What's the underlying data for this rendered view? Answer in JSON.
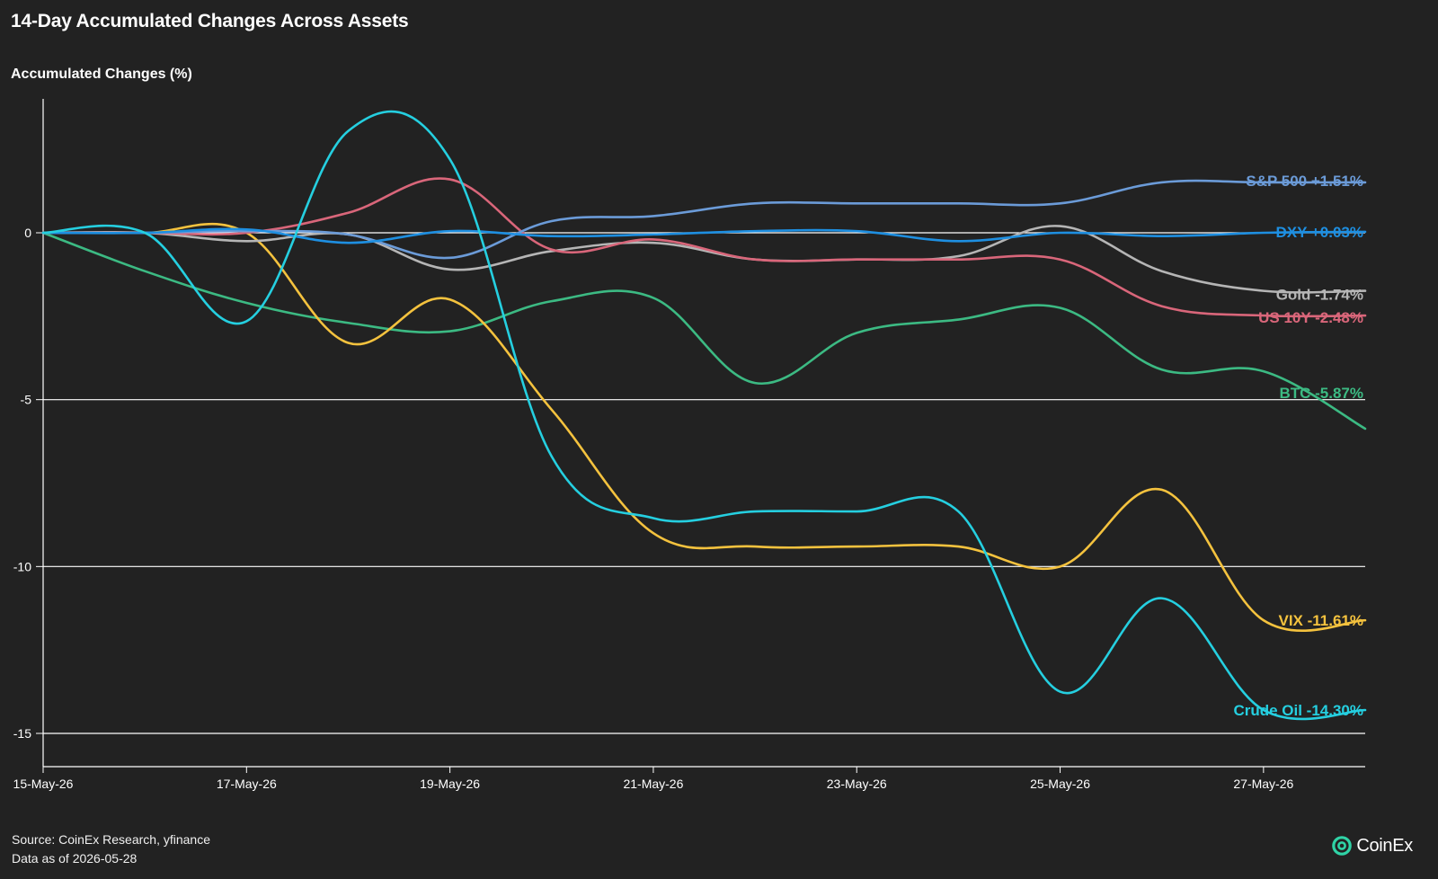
{
  "title": "14-Day Accumulated Changes Across Assets",
  "footer": {
    "source": "Source: CoinEx Research, yfinance",
    "data_as_of": "Data as of 2026-05-28"
  },
  "brand": {
    "name": "CoinEx",
    "logo_icon": "coinex-logo-icon",
    "color": "#2fd3a6"
  },
  "chart_data": {
    "type": "line",
    "title": "14-Day Accumulated Changes Across Assets",
    "xlabel": "",
    "ylabel": "Accumulated Changes (%)",
    "x": [
      "15-May-26",
      "16-May-26",
      "17-May-26",
      "18-May-26",
      "19-May-26",
      "20-May-26",
      "21-May-26",
      "22-May-26",
      "23-May-26",
      "24-May-26",
      "25-May-26",
      "26-May-26",
      "27-May-26",
      "28-May-26"
    ],
    "xticks": [
      "15-May-26",
      "17-May-26",
      "19-May-26",
      "21-May-26",
      "23-May-26",
      "25-May-26",
      "27-May-26"
    ],
    "yticks": [
      0,
      -5,
      -10,
      -15
    ],
    "ytick_labels": [
      "0",
      "-5",
      "-10",
      "-15"
    ],
    "ylim": [
      -16,
      4
    ],
    "grid": "horizontal",
    "series": [
      {
        "name": "S&P 500",
        "label": "S&P 500 +1.51%",
        "color": "#6b9bd8",
        "values": [
          0,
          0,
          0.05,
          -0.05,
          -0.75,
          0.35,
          0.5,
          0.88,
          0.88,
          0.88,
          0.88,
          1.51,
          1.51,
          1.51
        ]
      },
      {
        "name": "DXY",
        "label": "DXY +0.03%",
        "color": "#1e8fe1",
        "values": [
          0,
          0,
          0.1,
          -0.3,
          0.05,
          -0.1,
          -0.05,
          0.05,
          0.05,
          -0.25,
          0.0,
          -0.1,
          0.0,
          0.03
        ]
      },
      {
        "name": "Gold",
        "label": "Gold -1.74%",
        "color": "#b5b5b5",
        "values": [
          0,
          0,
          -0.25,
          -0.05,
          -1.1,
          -0.55,
          -0.3,
          -0.8,
          -0.8,
          -0.7,
          0.2,
          -1.15,
          -1.74,
          -1.74
        ]
      },
      {
        "name": "US 10Y",
        "label": "US 10Y -2.48%",
        "color": "#d9667a",
        "values": [
          0,
          0,
          0,
          0.6,
          1.6,
          -0.5,
          -0.2,
          -0.8,
          -0.8,
          -0.8,
          -0.8,
          -2.2,
          -2.48,
          -2.48
        ]
      },
      {
        "name": "BTC",
        "label": "BTC -5.87%",
        "color": "#3cba83",
        "values": [
          0,
          -1.15,
          -2.1,
          -2.7,
          -2.95,
          -2.05,
          -1.95,
          -4.5,
          -3.0,
          -2.6,
          -2.25,
          -4.1,
          -4.15,
          -5.87
        ]
      },
      {
        "name": "VIX",
        "label": "VIX -11.61%",
        "color": "#f4c23e",
        "values": [
          0,
          0,
          0,
          -3.3,
          -2.0,
          -5.3,
          -9.0,
          -9.4,
          -9.4,
          -9.4,
          -10.0,
          -7.7,
          -11.61,
          -11.61
        ]
      },
      {
        "name": "Crude Oil",
        "label": "Crude Oil -14.30%",
        "color": "#25cfe0",
        "values": [
          0,
          0,
          -2.65,
          3.05,
          2.2,
          -6.7,
          -8.55,
          -8.35,
          -8.35,
          -8.35,
          -13.75,
          -10.95,
          -14.3,
          -14.3
        ]
      }
    ],
    "label_offsets": {
      "Crude Oil": 0.0
    }
  }
}
